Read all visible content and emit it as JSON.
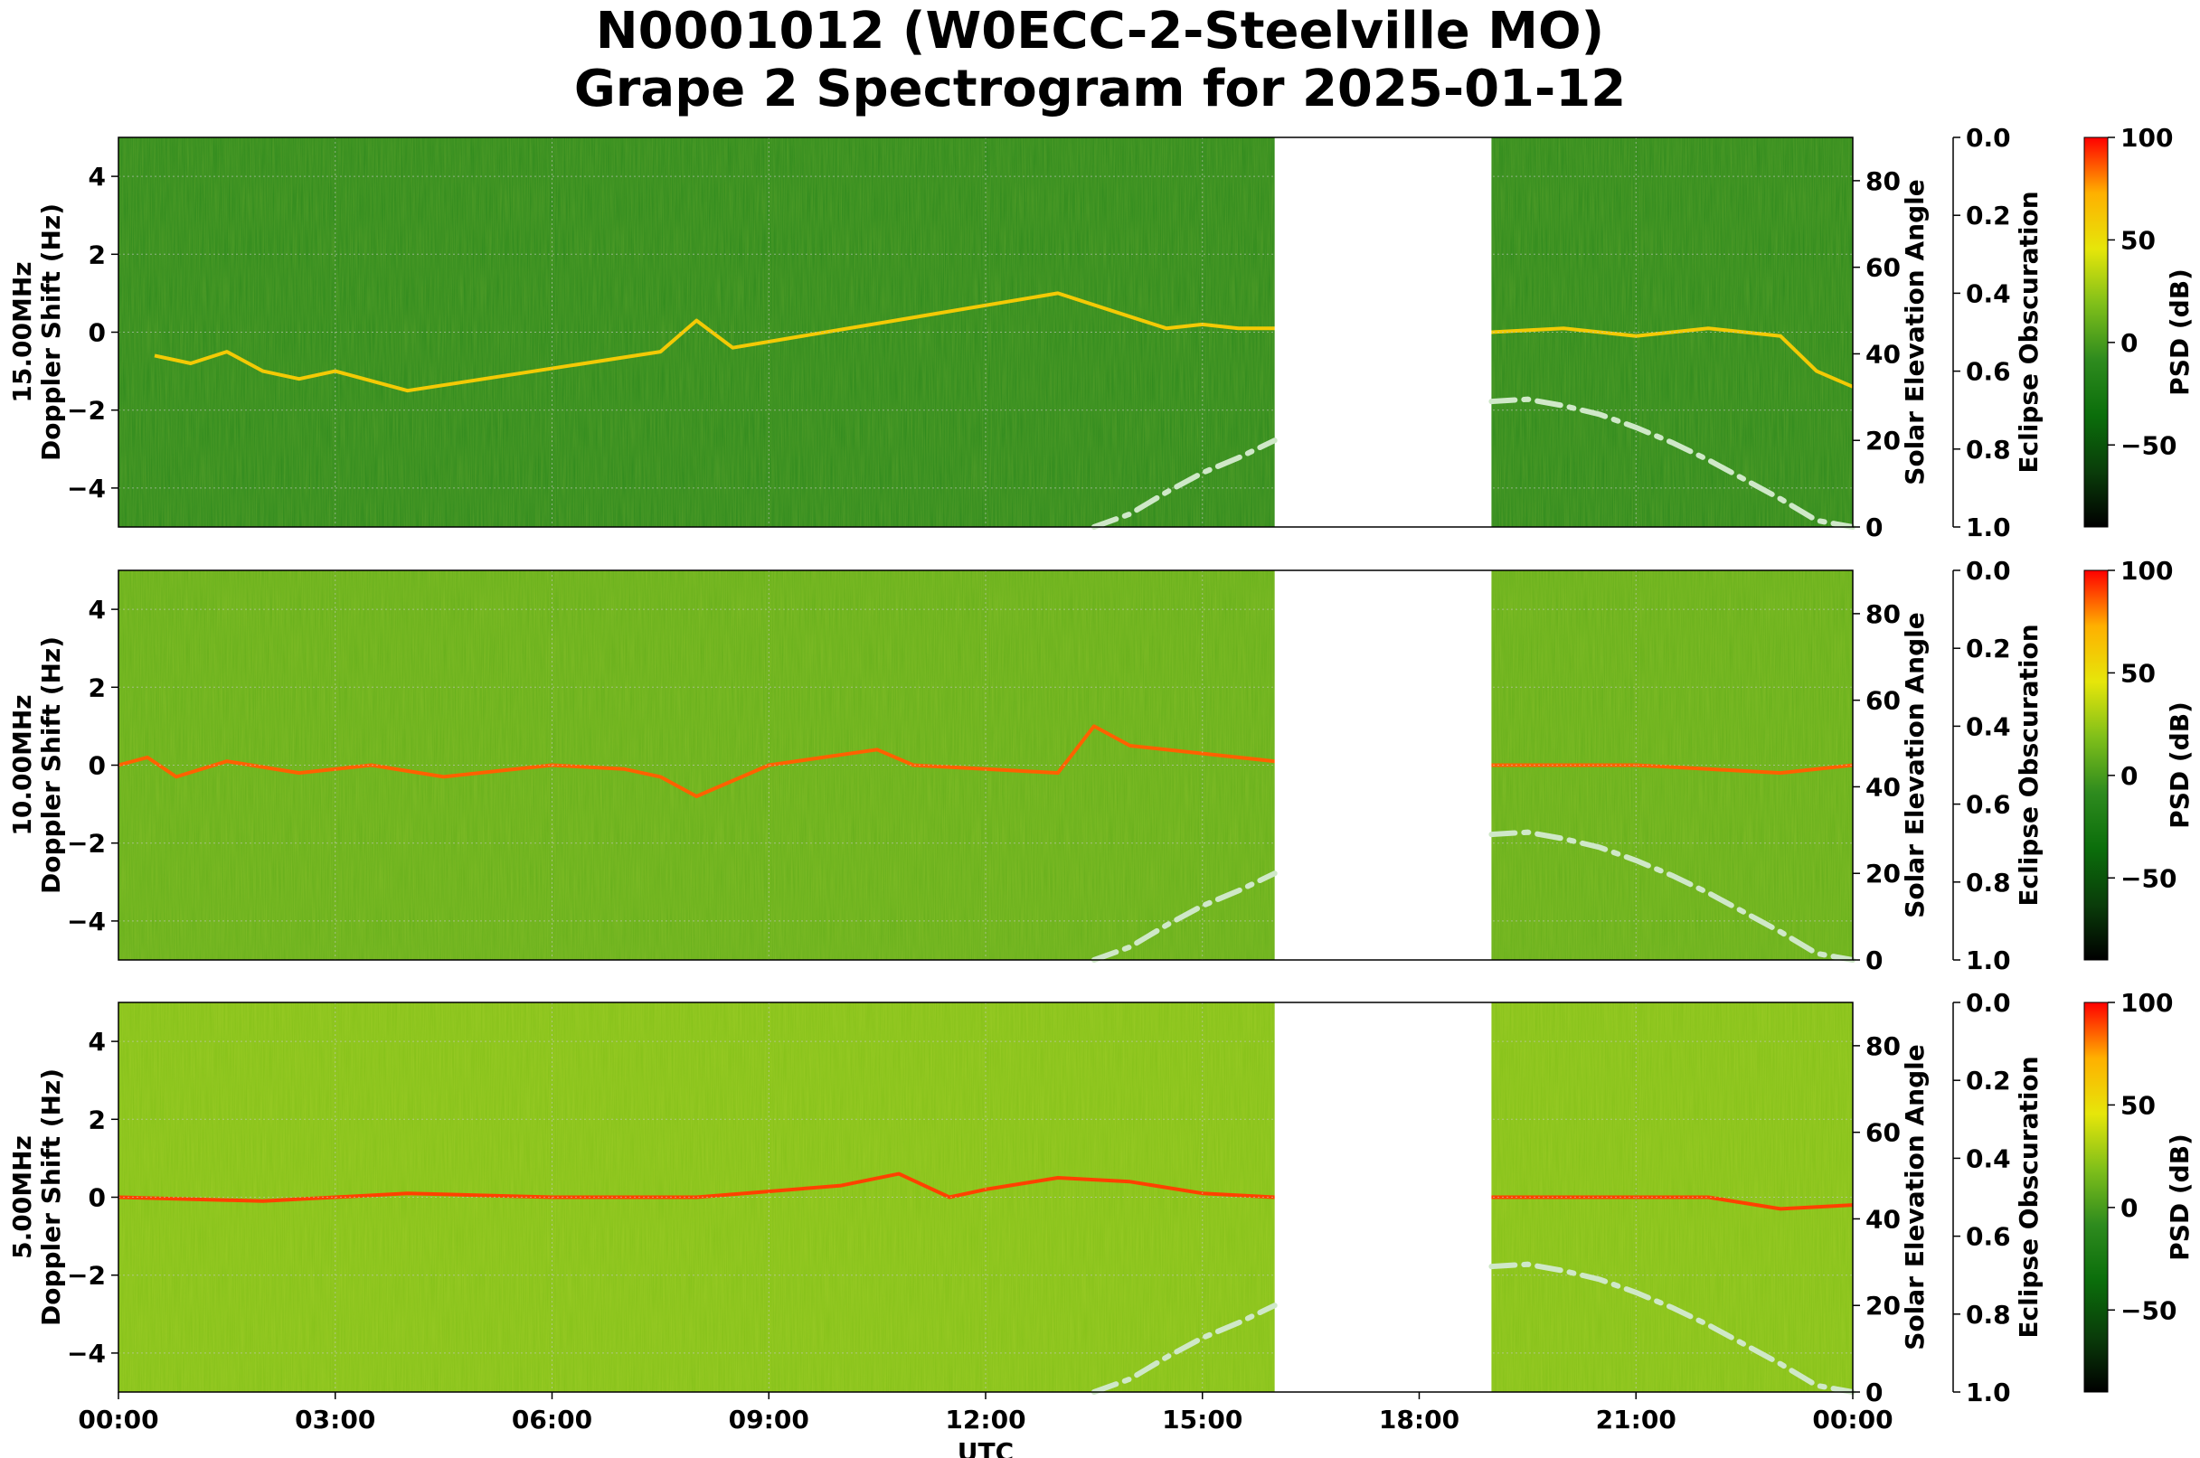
{
  "title": [
    "N0001012 (W0ECC-2-Steelville MO)",
    "Grape 2 Spectrogram for 2025-01-12"
  ],
  "colors": {
    "cmap": [
      "#000000",
      "#0a3d0a",
      "#0b6e0b",
      "#2e8b1e",
      "#7fbf1a",
      "#e6e60a",
      "#ffb000",
      "#ff0000"
    ],
    "elevation_curve": "#cfe8c8",
    "grid": "#c8c8c8",
    "gap": "#ffffff"
  },
  "chart_data": [
    {
      "type": "heatmap",
      "panel": "15.00MHz",
      "ylabel": "15.00MHz\nDoppler Shift (Hz)",
      "ylim": [
        -5,
        5
      ],
      "yticks": [
        "4",
        "2",
        "0",
        "−2",
        "−4"
      ],
      "right_axis": {
        "label": "Solar Elevation Angle",
        "ylim": [
          0,
          90
        ],
        "ticks": [
          "0",
          "20",
          "40",
          "60",
          "80"
        ]
      },
      "eclipse_axis": {
        "label": "Eclipse Obscuration",
        "ylim": [
          1.0,
          0.0
        ],
        "ticks": [
          "0.0",
          "0.2",
          "0.4",
          "0.6",
          "0.8",
          "1.0"
        ]
      },
      "colorbar": {
        "label": "PSD (dB)",
        "range": [
          -90,
          100
        ],
        "ticks": [
          "100",
          "50",
          "0",
          "−50"
        ]
      },
      "data_gap_hours": [
        16.0,
        19.0
      ],
      "background_level_db": -10,
      "doppler_trace": {
        "hours": [
          0.5,
          1.0,
          1.5,
          2.0,
          2.5,
          3.0,
          4.0,
          7.5,
          8.0,
          8.5,
          13.0,
          14.0,
          14.5,
          15.0,
          15.5,
          16.0,
          19.0,
          20.0,
          21.0,
          22.0,
          23.0,
          23.5,
          24.0
        ],
        "hz": [
          -0.6,
          -0.8,
          -0.5,
          -1.0,
          -1.2,
          -1.0,
          -1.5,
          -0.5,
          0.3,
          -0.4,
          1.0,
          0.4,
          0.1,
          0.2,
          0.1,
          0.1,
          0.0,
          0.1,
          -0.1,
          0.1,
          -0.1,
          -1.0,
          -1.4
        ],
        "level_db": 60
      },
      "solar_elevation": {
        "hours": [
          13.5,
          14,
          14.5,
          15,
          15.5,
          16,
          19,
          19.5,
          20,
          20.5,
          21,
          21.5,
          22,
          22.5,
          23,
          23.5,
          24
        ],
        "deg": [
          0,
          3,
          8,
          12.5,
          16,
          20,
          29,
          29.5,
          28,
          26,
          23,
          19.5,
          15.5,
          11,
          6.5,
          1.5,
          0
        ]
      }
    },
    {
      "type": "heatmap",
      "panel": "10.00MHz",
      "ylabel": "10.00MHz\nDoppler Shift (Hz)",
      "ylim": [
        -5,
        5
      ],
      "yticks": [
        "4",
        "2",
        "0",
        "−2",
        "−4"
      ],
      "right_axis": {
        "label": "Solar Elevation Angle",
        "ylim": [
          0,
          90
        ],
        "ticks": [
          "0",
          "20",
          "40",
          "60",
          "80"
        ]
      },
      "eclipse_axis": {
        "label": "Eclipse Obscuration",
        "ylim": [
          1.0,
          0.0
        ],
        "ticks": [
          "0.0",
          "0.2",
          "0.4",
          "0.6",
          "0.8",
          "1.0"
        ]
      },
      "colorbar": {
        "label": "PSD (dB)",
        "range": [
          -90,
          100
        ],
        "ticks": [
          "100",
          "50",
          "0",
          "−50"
        ]
      },
      "data_gap_hours": [
        16.0,
        19.0
      ],
      "background_level_db": 10,
      "doppler_trace": {
        "hours": [
          0.0,
          0.4,
          0.8,
          1.5,
          2.5,
          3.5,
          4.5,
          6.0,
          7.0,
          7.5,
          8.0,
          9.0,
          10.5,
          11.0,
          12.0,
          13.0,
          13.5,
          14.0,
          15.0,
          16.0,
          19.0,
          20.0,
          21.0,
          22.0,
          23.0,
          24.0
        ],
        "hz": [
          0.0,
          0.2,
          -0.3,
          0.1,
          -0.2,
          0.0,
          -0.3,
          0.0,
          -0.1,
          -0.3,
          -0.8,
          0.0,
          0.4,
          0.0,
          -0.1,
          -0.2,
          1.0,
          0.5,
          0.3,
          0.1,
          0.0,
          0.0,
          0.0,
          -0.1,
          -0.2,
          0.0
        ],
        "level_db": 85
      },
      "solar_elevation": {
        "hours": [
          13.5,
          14,
          14.5,
          15,
          15.5,
          16,
          19,
          19.5,
          20,
          20.5,
          21,
          21.5,
          22,
          22.5,
          23,
          23.5,
          24
        ],
        "deg": [
          0,
          3,
          8,
          12.5,
          16,
          20,
          29,
          29.5,
          28,
          26,
          23,
          19.5,
          15.5,
          11,
          6.5,
          1.5,
          0
        ]
      }
    },
    {
      "type": "heatmap",
      "panel": "5.00MHz",
      "ylabel": "5.00MHz\nDoppler Shift (Hz)",
      "ylim": [
        -5,
        5
      ],
      "yticks": [
        "4",
        "2",
        "0",
        "−2",
        "−4"
      ],
      "right_axis": {
        "label": "Solar Elevation Angle",
        "ylim": [
          0,
          90
        ],
        "ticks": [
          "0",
          "20",
          "40",
          "60",
          "80"
        ]
      },
      "eclipse_axis": {
        "label": "Eclipse Obscuration",
        "ylim": [
          1.0,
          0.0
        ],
        "ticks": [
          "0.0",
          "0.2",
          "0.4",
          "0.6",
          "0.8",
          "1.0"
        ]
      },
      "colorbar": {
        "label": "PSD (dB)",
        "range": [
          -90,
          100
        ],
        "ticks": [
          "100",
          "50",
          "0",
          "−50"
        ]
      },
      "data_gap_hours": [
        16.0,
        19.0
      ],
      "background_level_db": 20,
      "doppler_trace": {
        "hours": [
          0.0,
          2.0,
          4.0,
          6.0,
          8.0,
          10.0,
          10.8,
          11.5,
          12.0,
          13.0,
          14.0,
          15.0,
          16.0,
          19.0,
          22.0,
          23.0,
          24.0
        ],
        "hz": [
          0.0,
          -0.1,
          0.1,
          0.0,
          0.0,
          0.3,
          0.6,
          0.0,
          0.2,
          0.5,
          0.4,
          0.1,
          0.0,
          0.0,
          0.0,
          -0.3,
          -0.2
        ],
        "level_db": 90
      },
      "solar_elevation": {
        "hours": [
          13.5,
          14,
          14.5,
          15,
          15.5,
          16,
          19,
          19.5,
          20,
          20.5,
          21,
          21.5,
          22,
          22.5,
          23,
          23.5,
          24
        ],
        "deg": [
          0,
          3,
          8,
          12.5,
          16,
          20,
          29,
          29.5,
          28,
          26,
          23,
          19.5,
          15.5,
          11,
          6.5,
          1.5,
          0
        ]
      }
    }
  ],
  "x_axis": {
    "label": "UTC",
    "range_hours": [
      0,
      24
    ],
    "ticks": [
      "00:00",
      "03:00",
      "06:00",
      "09:00",
      "12:00",
      "15:00",
      "18:00",
      "21:00",
      "00:00"
    ]
  }
}
